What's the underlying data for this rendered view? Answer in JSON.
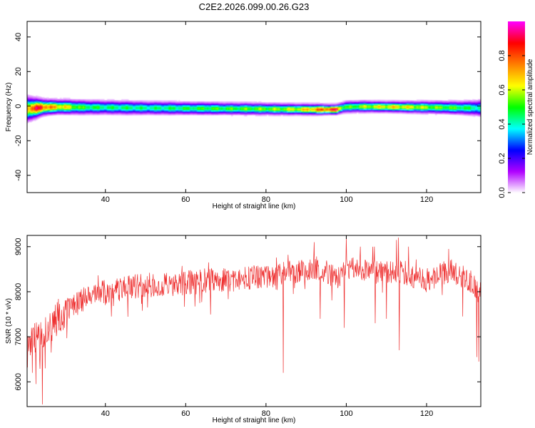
{
  "figure": {
    "title": "C2E2.2026.099.00.26.G23"
  },
  "chart_data": [
    {
      "type": "heatmap",
      "title": "C2E2.2026.099.00.26.G23",
      "xlabel": "Height of straight line (km)",
      "ylabel": "Frequency (Hz)",
      "xlim": [
        20.5,
        133.5
      ],
      "ylim": [
        -50,
        49
      ],
      "xticks": [
        40,
        60,
        80,
        100,
        120
      ],
      "yticks": [
        -40,
        -20,
        0,
        20,
        40
      ],
      "grid": false,
      "colorbar": {
        "label": "Normalized spectral amplitude",
        "range": [
          0,
          1
        ],
        "ticks": [
          0.0,
          0.2,
          0.4,
          0.6,
          0.8
        ],
        "tick_labels": [
          "0.0",
          "0.2",
          "0.4",
          "0.6",
          "0.8"
        ],
        "colormap": [
          "#ffffff",
          "#b000ff",
          "#0000ff",
          "#00ffff",
          "#00ff00",
          "#ffff00",
          "#ff8000",
          "#ff0000",
          "#ff00ff"
        ]
      },
      "band": {
        "x": [
          20.5,
          22,
          24,
          26,
          28,
          30,
          34,
          40,
          46,
          50,
          56,
          60,
          66,
          70,
          76,
          80,
          84,
          88,
          92,
          96,
          97.5,
          99,
          100,
          104,
          108,
          112,
          116,
          120,
          124,
          128,
          131,
          133.5
        ],
        "center": [
          -1.5,
          -1.2,
          -0.6,
          -0.4,
          -0.3,
          -0.3,
          -0.5,
          -0.6,
          -0.8,
          -0.9,
          -1.0,
          -1.1,
          -1.2,
          -1.3,
          -1.4,
          -1.5,
          -1.6,
          -1.7,
          -1.8,
          -1.8,
          -1.8,
          -0.8,
          -0.3,
          -0.1,
          -0.2,
          -0.3,
          -0.4,
          -0.5,
          -0.6,
          -0.8,
          -0.9,
          -1.0
        ],
        "width": [
          4.5,
          3.8,
          3.0,
          2.7,
          2.6,
          2.6,
          2.6,
          2.5,
          2.5,
          2.4,
          2.4,
          2.3,
          2.3,
          2.2,
          2.2,
          2.1,
          2.1,
          2.0,
          2.0,
          1.8,
          1.8,
          2.0,
          2.1,
          2.1,
          2.0,
          2.0,
          2.1,
          2.2,
          2.3,
          2.4,
          2.6,
          3.0
        ],
        "peak": [
          0.8,
          0.9,
          0.95,
          0.8,
          0.75,
          0.7,
          0.55,
          0.5,
          0.5,
          0.48,
          0.5,
          0.52,
          0.55,
          0.55,
          0.58,
          0.6,
          0.62,
          0.68,
          0.8,
          0.92,
          0.95,
          0.6,
          0.55,
          0.62,
          0.68,
          0.72,
          0.68,
          0.62,
          0.58,
          0.55,
          0.5,
          0.45
        ]
      }
    },
    {
      "type": "line",
      "xlabel": "Height of straight line (km)",
      "ylabel": "SNR (10 * v/v)",
      "xlim": [
        20.5,
        133.5
      ],
      "ylim": [
        5450,
        9250
      ],
      "xticks": [
        40,
        60,
        80,
        100,
        120
      ],
      "yticks": [
        6000,
        7000,
        8000,
        9000
      ],
      "grid": false,
      "color": "#ee3030",
      "trend": {
        "x": [
          20.5,
          22,
          24,
          26,
          28,
          30,
          32,
          35,
          40,
          45,
          50,
          55,
          60,
          65,
          70,
          75,
          80,
          85,
          88,
          90,
          92,
          94,
          96,
          98,
          100,
          102,
          104,
          106,
          108,
          110,
          112,
          114,
          116,
          118,
          120,
          122,
          124,
          126,
          128,
          130,
          132,
          133.5
        ],
        "y": [
          6900,
          7000,
          7050,
          7200,
          7450,
          7600,
          7700,
          7850,
          8000,
          8100,
          8150,
          8150,
          8200,
          8250,
          8250,
          8300,
          8350,
          8400,
          8450,
          8500,
          8550,
          8500,
          8400,
          8300,
          8450,
          8500,
          8500,
          8450,
          8400,
          8400,
          8450,
          8450,
          8350,
          8300,
          8250,
          8300,
          8400,
          8450,
          8400,
          8300,
          8100,
          7950
        ]
      },
      "dips": [
        {
          "x": 20.8,
          "y": 7000
        },
        {
          "x": 21.8,
          "y": 6200
        },
        {
          "x": 22.7,
          "y": 5950
        },
        {
          "x": 23.6,
          "y": 6550
        },
        {
          "x": 24.3,
          "y": 5500
        },
        {
          "x": 25.0,
          "y": 6300
        },
        {
          "x": 26.5,
          "y": 6650
        },
        {
          "x": 29.5,
          "y": 7150
        },
        {
          "x": 41.5,
          "y": 7450
        },
        {
          "x": 50.5,
          "y": 7650
        },
        {
          "x": 63.5,
          "y": 7750
        },
        {
          "x": 84.3,
          "y": 6200
        },
        {
          "x": 93.5,
          "y": 7400
        },
        {
          "x": 99.5,
          "y": 7200
        },
        {
          "x": 107.2,
          "y": 7300
        },
        {
          "x": 110.0,
          "y": 7400
        },
        {
          "x": 113.2,
          "y": 6700
        },
        {
          "x": 129.0,
          "y": 7450
        },
        {
          "x": 132.5,
          "y": 6550
        },
        {
          "x": 133.0,
          "y": 6450
        }
      ],
      "spikes": [
        {
          "x": 92.0,
          "y": 9100
        },
        {
          "x": 100.0,
          "y": 9200
        },
        {
          "x": 103.5,
          "y": 9000
        },
        {
          "x": 107.0,
          "y": 9000
        },
        {
          "x": 112.5,
          "y": 9150
        },
        {
          "x": 113.0,
          "y": 9200
        },
        {
          "x": 115.5,
          "y": 9000
        },
        {
          "x": 125.5,
          "y": 8950
        }
      ]
    }
  ]
}
